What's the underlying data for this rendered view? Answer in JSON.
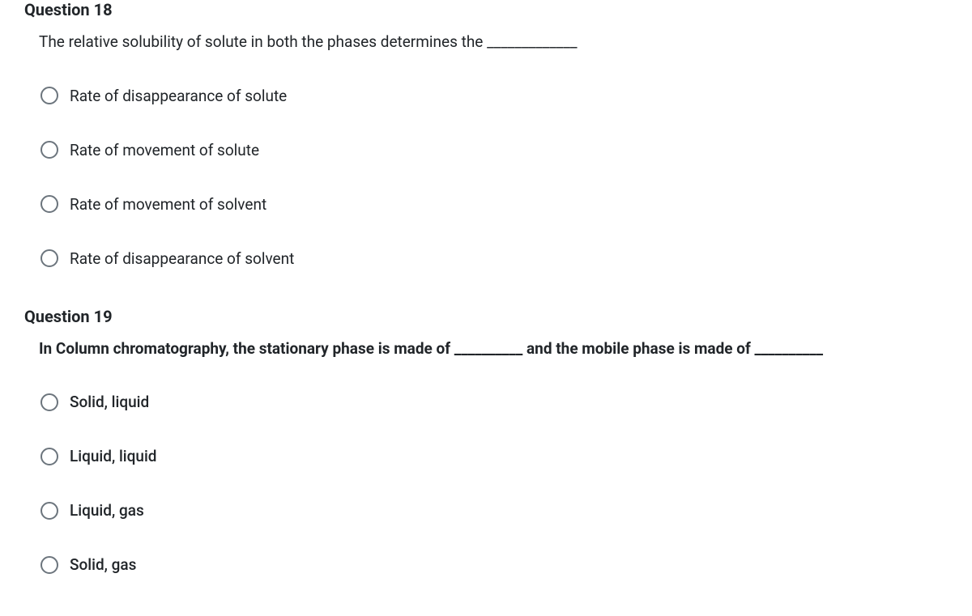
{
  "q18": {
    "title": "Question 18",
    "text": "The relative solubility of solute in both the phases determines the _____________",
    "options": [
      "Rate of disappearance of solute",
      "Rate of movement of solute",
      "Rate of movement of solvent",
      "Rate of disappearance of solvent"
    ]
  },
  "q19": {
    "title": "Question 19",
    "text": "In Column chromatography, the stationary phase is made of __________ and the mobile phase is made of __________",
    "options": [
      "Solid, liquid",
      "Liquid, liquid",
      "Liquid, gas",
      "Solid, gas"
    ]
  }
}
